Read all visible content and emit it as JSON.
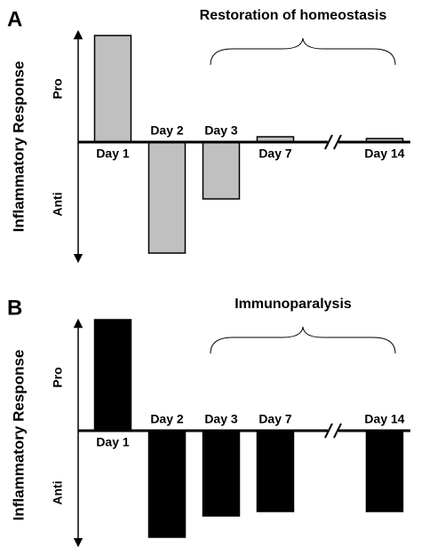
{
  "chart_data": [
    {
      "type": "bar",
      "panel_label": "A",
      "annotation": "Restoration of homeostasis",
      "y_label": "Inflammatory Response",
      "pro_label": "Pro",
      "anti_label": "Anti",
      "categories": [
        "Day 1",
        "Day 2",
        "Day 3",
        "Day 7",
        "Day 14"
      ],
      "values": [
        120,
        -125,
        -64,
        6,
        4
      ],
      "color": "#c0c0c0",
      "ylim": [
        -135,
        125
      ]
    },
    {
      "type": "bar",
      "panel_label": "B",
      "annotation": "Immunoparalysis",
      "y_label": "Inflammatory Response",
      "pro_label": "Pro",
      "anti_label": "Anti",
      "categories": [
        "Day 1",
        "Day 2",
        "Day 3",
        "Day 7",
        "Day 14"
      ],
      "values": [
        125,
        -120,
        -96,
        -91,
        -91
      ],
      "color": "#000000",
      "ylim": [
        -130,
        125
      ]
    }
  ]
}
